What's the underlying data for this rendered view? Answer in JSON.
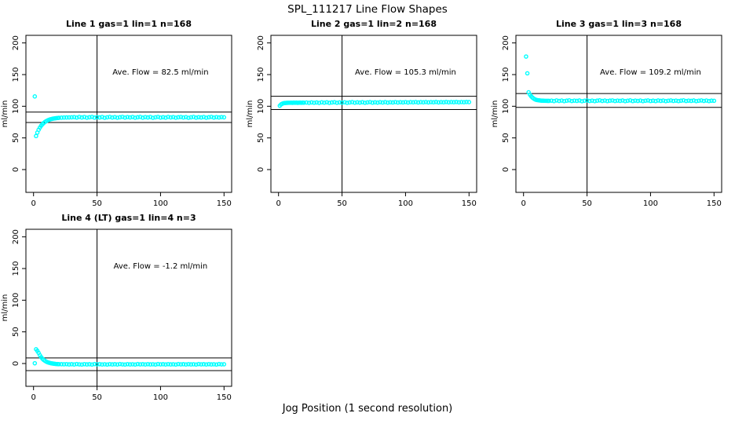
{
  "page": {
    "title": "SPL_111217  Line Flow Shapes",
    "xlabel": "Jog Position (1 second resolution)"
  },
  "style": {
    "point_color": "#00FFFF",
    "line_color": "#000000",
    "background": "#FFFFFF"
  },
  "axes": {
    "xlim": [
      -6,
      156
    ],
    "ylim": [
      -36,
      212
    ],
    "xticks": [
      0,
      50,
      100,
      150
    ],
    "yticks": [
      0,
      50,
      100,
      150,
      200
    ],
    "ylabel": "ml/min",
    "grid": false,
    "box": true,
    "legend": "none"
  },
  "chart_data": [
    {
      "type": "scatter",
      "row": 0,
      "col": 0,
      "title": "Line 1 gas=1 lin=1 n=168",
      "annotation": "Ave. Flow =  82.5  ml/min",
      "ave_flow": 82.5,
      "ref_lines_h": [
        74.3,
        90.8
      ],
      "ref_line_v": 50,
      "x": [
        1,
        2,
        3,
        4,
        5,
        6,
        7,
        8,
        9,
        10,
        11,
        12,
        13,
        14,
        15,
        16,
        17,
        18,
        19,
        20,
        22,
        24,
        26,
        28,
        30,
        32,
        34,
        36,
        38,
        40,
        42,
        44,
        46,
        48,
        50,
        52,
        54,
        56,
        58,
        60,
        62,
        64,
        66,
        68,
        70,
        72,
        74,
        76,
        78,
        80,
        82,
        84,
        86,
        88,
        90,
        92,
        94,
        96,
        98,
        100,
        102,
        104,
        106,
        108,
        110,
        112,
        114,
        116,
        118,
        120,
        122,
        124,
        126,
        128,
        130,
        132,
        134,
        136,
        138,
        140,
        142,
        144,
        146,
        148,
        150
      ],
      "y": [
        115.5,
        53.0,
        58.4,
        62.8,
        66.3,
        69.2,
        71.6,
        73.6,
        75.2,
        76.5,
        77.6,
        78.5,
        79.2,
        79.8,
        80.3,
        80.7,
        81.0,
        81.3,
        81.5,
        81.7,
        82.0,
        82.2,
        82.3,
        82.4,
        82.5,
        82.8,
        82.1,
        83.1,
        82.3,
        83.0,
        81.9,
        82.6,
        83.2,
        82.0,
        82.7,
        82.3,
        83.0,
        81.8,
        82.5,
        83.1,
        82.2,
        82.8,
        81.9,
        82.6,
        83.2,
        82.1,
        82.9,
        82.4,
        83.0,
        81.9,
        82.6,
        83.1,
        82.0,
        82.8,
        82.3,
        83.0,
        81.8,
        82.5,
        83.2,
        82.1,
        82.7,
        82.0,
        83.1,
        82.4,
        82.9,
        81.9,
        82.6,
        83.0,
        82.2,
        82.8,
        81.8,
        82.5,
        83.1,
        82.0,
        82.7,
        82.3,
        83.0,
        81.9,
        82.6,
        83.2,
        82.1,
        82.8,
        82.3,
        82.9,
        82.5
      ]
    },
    {
      "type": "scatter",
      "row": 0,
      "col": 1,
      "title": "Line 2 gas=1 lin=2 n=168",
      "annotation": "Ave. Flow =  105.3  ml/min",
      "ave_flow": 105.3,
      "ref_lines_h": [
        94.8,
        115.8
      ],
      "ref_line_v": 50,
      "x": [
        1,
        2,
        3,
        4,
        5,
        6,
        7,
        8,
        9,
        10,
        11,
        12,
        13,
        14,
        15,
        16,
        17,
        18,
        19,
        20,
        22,
        24,
        26,
        28,
        30,
        32,
        34,
        36,
        38,
        40,
        42,
        44,
        46,
        48,
        50,
        52,
        54,
        56,
        58,
        60,
        62,
        64,
        66,
        68,
        70,
        72,
        74,
        76,
        78,
        80,
        82,
        84,
        86,
        88,
        90,
        92,
        94,
        96,
        98,
        100,
        102,
        104,
        106,
        108,
        110,
        112,
        114,
        116,
        118,
        120,
        122,
        124,
        126,
        128,
        130,
        132,
        134,
        136,
        138,
        140,
        142,
        144,
        146,
        148,
        150
      ],
      "y": [
        100.8,
        102.9,
        104.1,
        104.8,
        105.1,
        105.3,
        105.4,
        105.5,
        105.5,
        105.6,
        105.4,
        105.7,
        105.5,
        105.8,
        105.4,
        105.6,
        105.7,
        105.5,
        105.8,
        105.6,
        105.9,
        105.4,
        106.1,
        105.5,
        106.0,
        105.3,
        106.2,
        105.6,
        106.3,
        105.4,
        106.0,
        106.4,
        105.5,
        106.1,
        105.7,
        106.3,
        105.4,
        106.0,
        106.5,
        105.6,
        106.2,
        105.8,
        106.4,
        105.5,
        106.1,
        106.6,
        105.7,
        106.2,
        105.8,
        106.4,
        105.9,
        106.5,
        105.8,
        106.3,
        106.0,
        106.6,
        105.9,
        106.4,
        106.1,
        106.6,
        105.9,
        106.5,
        106.2,
        106.7,
        106.0,
        106.5,
        106.2,
        106.7,
        106.1,
        106.6,
        106.3,
        106.8,
        106.1,
        106.6,
        106.3,
        106.8,
        106.2,
        106.7,
        106.4,
        106.8,
        106.2,
        106.7,
        106.4,
        106.8,
        106.5
      ]
    },
    {
      "type": "scatter",
      "row": 0,
      "col": 2,
      "title": "Line 3 gas=1 lin=3 n=168",
      "annotation": "Ave. Flow =  109.2  ml/min",
      "ave_flow": 109.2,
      "ref_lines_h": [
        98.3,
        120.1
      ],
      "ref_line_v": 50,
      "x": [
        2,
        3,
        4,
        5,
        6,
        7,
        8,
        9,
        10,
        11,
        12,
        13,
        14,
        15,
        16,
        17,
        18,
        19,
        20,
        22,
        24,
        26,
        28,
        30,
        32,
        34,
        36,
        38,
        40,
        42,
        44,
        46,
        48,
        50,
        52,
        54,
        56,
        58,
        60,
        62,
        64,
        66,
        68,
        70,
        72,
        74,
        76,
        78,
        80,
        82,
        84,
        86,
        88,
        90,
        92,
        94,
        96,
        98,
        100,
        102,
        104,
        106,
        108,
        110,
        112,
        114,
        116,
        118,
        120,
        122,
        124,
        126,
        128,
        130,
        132,
        134,
        136,
        138,
        140,
        142,
        144,
        146,
        148,
        150
      ],
      "y": [
        178.5,
        152.0,
        122.0,
        118.4,
        115.7,
        113.7,
        112.1,
        110.9,
        110.1,
        109.7,
        109.4,
        109.1,
        108.9,
        108.8,
        108.7,
        108.6,
        108.6,
        108.5,
        108.5,
        108.9,
        108.2,
        109.2,
        108.4,
        109.0,
        108.1,
        108.8,
        109.3,
        108.3,
        108.9,
        108.5,
        109.1,
        108.0,
        108.7,
        109.2,
        108.3,
        108.9,
        108.1,
        108.8,
        109.3,
        108.4,
        109.0,
        108.2,
        108.8,
        109.2,
        108.3,
        108.9,
        108.5,
        109.1,
        108.1,
        108.7,
        109.3,
        108.2,
        108.9,
        108.4,
        109.0,
        108.1,
        108.7,
        109.2,
        108.3,
        108.8,
        108.2,
        109.1,
        108.5,
        109.0,
        108.1,
        108.7,
        109.2,
        108.4,
        108.9,
        108.2,
        108.8,
        109.3,
        108.3,
        108.9,
        108.5,
        109.1,
        108.1,
        108.7,
        109.2,
        108.4,
        109.0,
        108.2,
        108.8,
        108.6
      ]
    },
    {
      "type": "scatter",
      "row": 1,
      "col": 0,
      "title": "Line 4 (LT) gas=1 lin=4 n=3",
      "annotation": "Ave. Flow =  -1.2  ml/min",
      "ave_flow": -1.2,
      "ref_lines_h": [
        8.8,
        -11.2
      ],
      "ref_line_v": 50,
      "x": [
        1,
        2,
        3,
        4,
        5,
        6,
        7,
        8,
        9,
        10,
        11,
        12,
        13,
        14,
        15,
        16,
        17,
        18,
        19,
        20,
        22,
        24,
        26,
        28,
        30,
        32,
        34,
        36,
        38,
        40,
        42,
        44,
        46,
        48,
        50,
        52,
        54,
        56,
        58,
        60,
        62,
        64,
        66,
        68,
        70,
        72,
        74,
        76,
        78,
        80,
        82,
        84,
        86,
        88,
        90,
        92,
        94,
        96,
        98,
        100,
        102,
        104,
        106,
        108,
        110,
        112,
        114,
        116,
        118,
        120,
        122,
        124,
        126,
        128,
        130,
        132,
        134,
        136,
        138,
        140,
        142,
        144,
        146,
        148,
        150
      ],
      "y": [
        0.4,
        22.5,
        20.0,
        16.8,
        13.0,
        10.0,
        7.6,
        5.7,
        4.2,
        3.0,
        2.1,
        1.4,
        0.8,
        0.3,
        0.0,
        -0.3,
        -0.6,
        -0.8,
        -0.9,
        -1.0,
        -1.1,
        -1.2,
        -1.0,
        -1.4,
        -1.1,
        -1.5,
        -0.9,
        -1.3,
        -1.6,
        -1.0,
        -1.4,
        -1.1,
        -1.6,
        -0.9,
        -1.3,
        -1.0,
        -1.5,
        -1.2,
        -1.6,
        -1.0,
        -1.4,
        -1.1,
        -1.5,
        -0.9,
        -1.3,
        -1.6,
        -1.0,
        -1.4,
        -1.2,
        -1.6,
        -0.9,
        -1.3,
        -1.1,
        -1.5,
        -1.0,
        -1.4,
        -1.2,
        -1.6,
        -0.9,
        -1.3,
        -1.1,
        -1.5,
        -1.0,
        -1.4,
        -1.2,
        -1.6,
        -0.9,
        -1.3,
        -1.1,
        -1.5,
        -1.0,
        -1.4,
        -1.2,
        -1.6,
        -0.9,
        -1.3,
        -1.1,
        -1.5,
        -1.0,
        -1.4,
        -1.2,
        -1.6,
        -0.9,
        -1.3,
        -1.2
      ]
    }
  ]
}
